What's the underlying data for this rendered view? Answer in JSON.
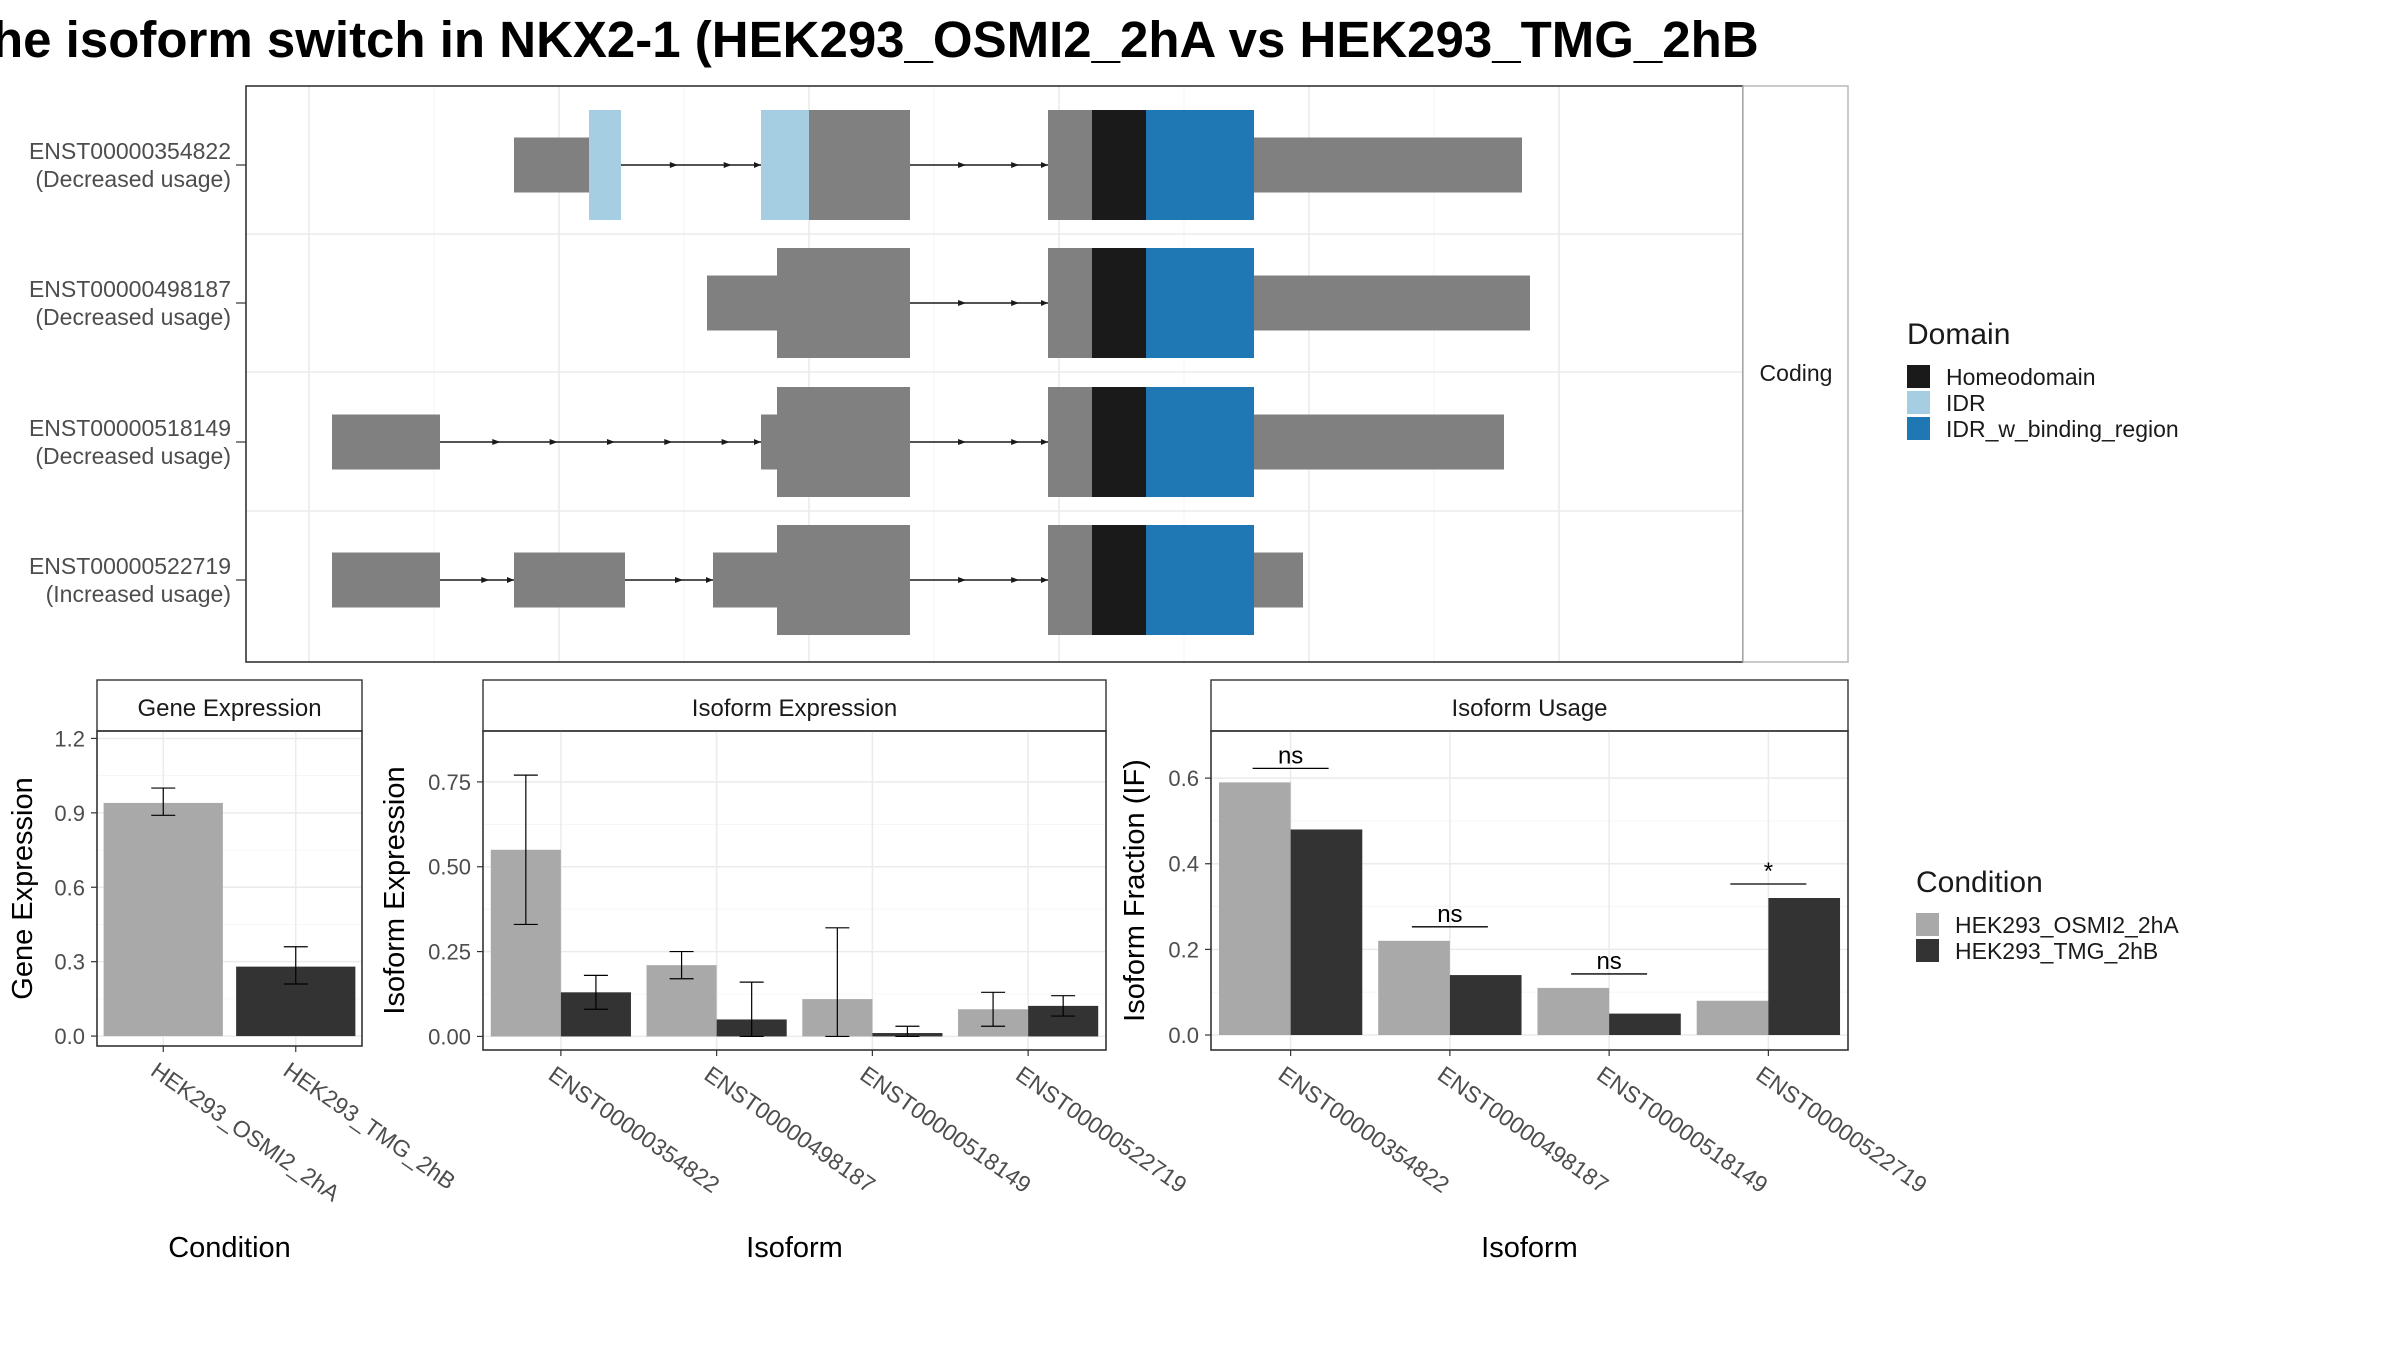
{
  "title": "he isoform switch in NKX2-1 (HEK293_OSMI2_2hA vs HEK293_TMG_2hB",
  "colors": {
    "exon": "#808080",
    "intron": "#1a1a1a",
    "Homeodomain": "#1a1a1a",
    "IDR": "#a6cee3",
    "IDR_w_binding_region": "#1f78b4",
    "cond_a": "#a9a9a9",
    "cond_b": "#333333"
  },
  "structure": {
    "facet_label": "Coding",
    "isoforms": [
      {
        "id": "ENST00000354822",
        "usage": "(Decreased usage)",
        "exons": [
          {
            "s": 0.205,
            "e": 0.28,
            "cds": false
          },
          {
            "s": 0.28,
            "e": 0.312,
            "cds": true
          },
          {
            "s": 0.452,
            "e": 0.601,
            "cds": true
          },
          {
            "s": 0.739,
            "e": 0.92,
            "cds": true
          },
          {
            "s": 0.92,
            "e": 1.213,
            "cds": false
          }
        ],
        "domains": [
          {
            "type": "IDR",
            "s": 0.28,
            "e": 0.312
          },
          {
            "type": "IDR",
            "s": 0.452,
            "e": 0.5
          },
          {
            "type": "Homeodomain",
            "s": 0.783,
            "e": 0.837
          },
          {
            "type": "IDR_w_binding_region",
            "s": 0.837,
            "e": 0.945
          }
        ]
      },
      {
        "id": "ENST00000498187",
        "usage": "(Decreased usage)",
        "exons": [
          {
            "s": 0.398,
            "e": 0.468,
            "cds": false
          },
          {
            "s": 0.468,
            "e": 0.601,
            "cds": true
          },
          {
            "s": 0.739,
            "e": 0.92,
            "cds": true
          },
          {
            "s": 0.92,
            "e": 1.221,
            "cds": false
          }
        ],
        "domains": [
          {
            "type": "Homeodomain",
            "s": 0.783,
            "e": 0.837
          },
          {
            "type": "IDR_w_binding_region",
            "s": 0.837,
            "e": 0.945
          }
        ]
      },
      {
        "id": "ENST00000518149",
        "usage": "(Decreased usage)",
        "exons": [
          {
            "s": 0.023,
            "e": 0.131,
            "cds": false
          },
          {
            "s": 0.452,
            "e": 0.468,
            "cds": false
          },
          {
            "s": 0.468,
            "e": 0.601,
            "cds": true
          },
          {
            "s": 0.739,
            "e": 0.92,
            "cds": true
          },
          {
            "s": 0.92,
            "e": 1.195,
            "cds": false
          }
        ],
        "domains": [
          {
            "type": "Homeodomain",
            "s": 0.783,
            "e": 0.837
          },
          {
            "type": "IDR_w_binding_region",
            "s": 0.837,
            "e": 0.945
          }
        ]
      },
      {
        "id": "ENST00000522719",
        "usage": "(Increased usage)",
        "exons": [
          {
            "s": 0.023,
            "e": 0.131,
            "cds": false
          },
          {
            "s": 0.205,
            "e": 0.316,
            "cds": false
          },
          {
            "s": 0.404,
            "e": 0.458,
            "cds": false
          },
          {
            "s": 0.452,
            "e": 0.468,
            "cds": false
          },
          {
            "s": 0.468,
            "e": 0.601,
            "cds": true
          },
          {
            "s": 0.739,
            "e": 0.92,
            "cds": true
          },
          {
            "s": 0.92,
            "e": 0.994,
            "cds": false
          }
        ],
        "domains": [
          {
            "type": "Homeodomain",
            "s": 0.783,
            "e": 0.837
          },
          {
            "type": "IDR_w_binding_region",
            "s": 0.837,
            "e": 0.945
          }
        ]
      }
    ]
  },
  "legend_domain": {
    "title": "Domain",
    "items": [
      "Homeodomain",
      "IDR",
      "IDR_w_binding_region"
    ]
  },
  "legend_condition": {
    "title": "Condition",
    "items": [
      "HEK293_OSMI2_2hA",
      "HEK293_TMG_2hB"
    ]
  },
  "chart_data": [
    {
      "type": "bar",
      "title": "Gene Expression",
      "xlabel": "Condition",
      "ylabel": "Gene Expression",
      "ylim": [
        -0.04,
        1.23
      ],
      "yticks": [
        0.0,
        0.3,
        0.6,
        0.9,
        1.2
      ],
      "tick_labels": [
        "0.0",
        "0.3",
        "0.6",
        "0.9",
        "1.2"
      ],
      "categories": [
        "HEK293_OSMI2_2hA",
        "HEK293_TMG_2hB"
      ],
      "values": [
        0.94,
        0.28
      ],
      "err_lo": [
        0.89,
        0.21
      ],
      "err_hi": [
        1.0,
        0.36
      ]
    },
    {
      "type": "bar",
      "title": "Isoform Expression",
      "xlabel": "Isoform",
      "ylabel": "Isoform Expression",
      "ylim": [
        -0.04,
        0.9
      ],
      "yticks": [
        0.0,
        0.25,
        0.5,
        0.75
      ],
      "tick_labels": [
        "0.00",
        "0.25",
        "0.50",
        "0.75"
      ],
      "categories": [
        "ENST00000354822",
        "ENST00000498187",
        "ENST00000518149",
        "ENST00000522719"
      ],
      "series": [
        {
          "name": "HEK293_OSMI2_2hA",
          "values": [
            0.55,
            0.21,
            0.11,
            0.08
          ],
          "err_lo": [
            0.33,
            0.17,
            0.0,
            0.03
          ],
          "err_hi": [
            0.77,
            0.25,
            0.32,
            0.13
          ]
        },
        {
          "name": "HEK293_TMG_2hB",
          "values": [
            0.13,
            0.05,
            0.01,
            0.09
          ],
          "err_lo": [
            0.08,
            0.0,
            0.0,
            0.06
          ],
          "err_hi": [
            0.18,
            0.16,
            0.03,
            0.12
          ]
        }
      ]
    },
    {
      "type": "bar",
      "title": "Isoform Usage",
      "xlabel": "Isoform",
      "ylabel": "Isoform Fraction (IF)",
      "ylim": [
        -0.035,
        0.71
      ],
      "yticks": [
        0.0,
        0.2,
        0.4,
        0.6
      ],
      "tick_labels": [
        "0.0",
        "0.2",
        "0.4",
        "0.6"
      ],
      "categories": [
        "ENST00000354822",
        "ENST00000498187",
        "ENST00000518149",
        "ENST00000522719"
      ],
      "series": [
        {
          "name": "HEK293_OSMI2_2hA",
          "values": [
            0.59,
            0.22,
            0.11,
            0.08
          ]
        },
        {
          "name": "HEK293_TMG_2hB",
          "values": [
            0.48,
            0.14,
            0.05,
            0.32
          ]
        }
      ],
      "significance": [
        "ns",
        "ns",
        "ns",
        "*"
      ]
    }
  ]
}
